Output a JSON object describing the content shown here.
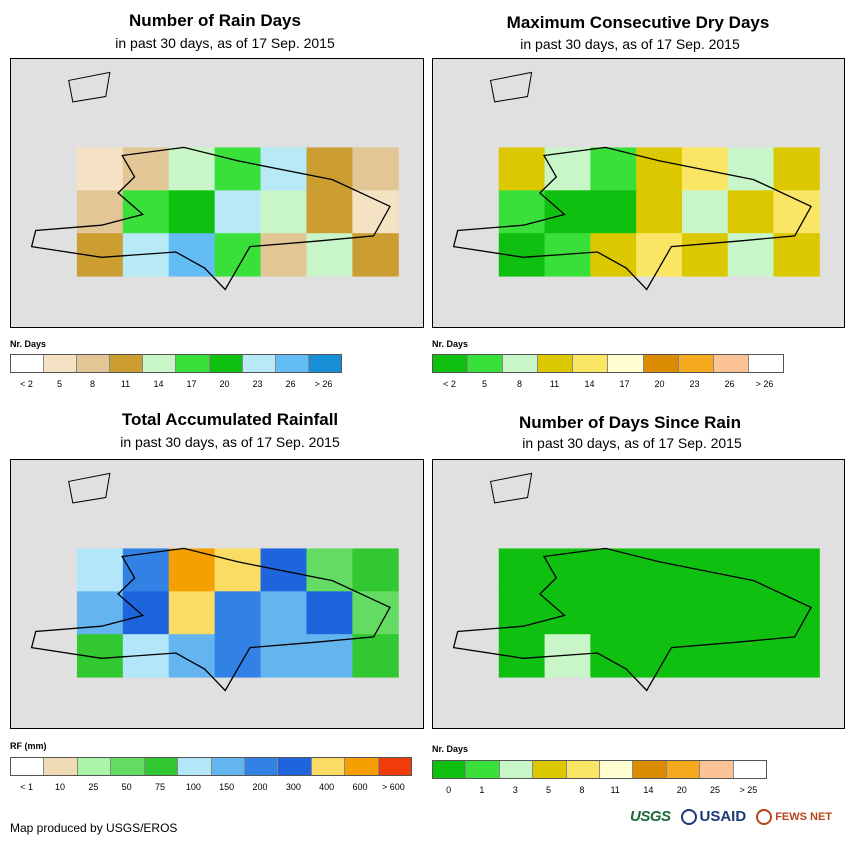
{
  "panels": [
    {
      "title": "Number of Rain Days",
      "subtitle": "in past 30 days, as of 17 Sep. 2015",
      "legend_title": "Nr. Days",
      "legend_colors": [
        "#ffffff",
        "#f5e2c4",
        "#e2c696",
        "#cc9e32",
        "#c8f6c8",
        "#3ae03a",
        "#10c010",
        "#b7e9f7",
        "#63bcf3",
        "#168fd7"
      ],
      "legend_labels": [
        "< 2",
        "5",
        "8",
        "11",
        "14",
        "17",
        "20",
        "23",
        "26",
        "> 26"
      ],
      "cells": [
        [
          "#f5e2c4",
          "#e2c696",
          "#c8f6c8",
          "#3ae03a",
          "#b7e9f7",
          "#cc9e32",
          "#e2c696"
        ],
        [
          "#e2c696",
          "#3ae03a",
          "#10c010",
          "#b7e9f7",
          "#c8f6c8",
          "#cc9e32",
          "#f5e2c4"
        ],
        [
          "#cc9e32",
          "#b7e9f7",
          "#63bcf3",
          "#3ae03a",
          "#e2c696",
          "#c8f6c8",
          "#cc9e32"
        ]
      ]
    },
    {
      "title": "Maximum Consecutive Dry Days",
      "subtitle": "in past 30 days, as of 17 Sep. 2015",
      "legend_title": "Nr. Days",
      "legend_colors": [
        "#10c010",
        "#3ae03a",
        "#c8f6c8",
        "#dcc800",
        "#fae664",
        "#ffffd2",
        "#dc8c00",
        "#f5aa1e",
        "#fcc396",
        "#ffffff"
      ],
      "legend_labels": [
        "< 2",
        "5",
        "8",
        "11",
        "14",
        "17",
        "20",
        "23",
        "26",
        "> 26"
      ],
      "cells": [
        [
          "#dcc800",
          "#c8f6c8",
          "#3ae03a",
          "#dcc800",
          "#fae664",
          "#c8f6c8",
          "#dcc800"
        ],
        [
          "#3ae03a",
          "#10c010",
          "#10c010",
          "#dcc800",
          "#c8f6c8",
          "#dcc800",
          "#fae664"
        ],
        [
          "#10c010",
          "#3ae03a",
          "#dcc800",
          "#fae664",
          "#dcc800",
          "#c8f6c8",
          "#dcc800"
        ]
      ]
    },
    {
      "title": "Total Accumulated Rainfall",
      "subtitle": "in past 30 days, as of 17 Sep. 2015",
      "legend_title": "RF (mm)",
      "legend_colors": [
        "#ffffff",
        "#f0dcb4",
        "#aaf5aa",
        "#64dc64",
        "#32c832",
        "#b4e6fa",
        "#64b4f0",
        "#3282e6",
        "#1e64dc",
        "#fadc64",
        "#f5a000",
        "#f03c0a"
      ],
      "legend_labels": [
        "< 1",
        "10",
        "25",
        "50",
        "75",
        "100",
        "150",
        "200",
        "300",
        "400",
        "600",
        "> 600"
      ],
      "cells": [
        [
          "#b4e6fa",
          "#3282e6",
          "#f5a000",
          "#fadc64",
          "#1e64dc",
          "#64dc64",
          "#32c832"
        ],
        [
          "#64b4f0",
          "#1e64dc",
          "#fadc64",
          "#3282e6",
          "#64b4f0",
          "#1e64dc",
          "#64dc64"
        ],
        [
          "#32c832",
          "#b4e6fa",
          "#64b4f0",
          "#3282e6",
          "#64b4f0",
          "#64b4f0",
          "#32c832"
        ]
      ]
    },
    {
      "title": "Number of Days Since Rain",
      "subtitle": "in past 30 days, as of 17 Sep. 2015",
      "legend_title": "Nr. Days",
      "legend_colors": [
        "#10c010",
        "#3ae03a",
        "#c8f6c8",
        "#dcc800",
        "#fae664",
        "#ffffd2",
        "#dc8c00",
        "#f5aa1e",
        "#fcc396",
        "#ffffff"
      ],
      "legend_labels": [
        "0",
        "1",
        "3",
        "5",
        "8",
        "11",
        "14",
        "20",
        "25",
        "> 25"
      ],
      "cells": [
        [
          "#10c010",
          "#10c010",
          "#10c010",
          "#10c010",
          "#10c010",
          "#10c010",
          "#10c010"
        ],
        [
          "#10c010",
          "#10c010",
          "#10c010",
          "#10c010",
          "#10c010",
          "#10c010",
          "#10c010"
        ],
        [
          "#10c010",
          "#c8f6c8",
          "#10c010",
          "#10c010",
          "#10c010",
          "#10c010",
          "#10c010"
        ]
      ]
    }
  ],
  "footer": "Map produced by USGS/EROS",
  "logos": {
    "usgs": "USGS",
    "usaid": "USAID",
    "fews": "FEWS NET"
  }
}
